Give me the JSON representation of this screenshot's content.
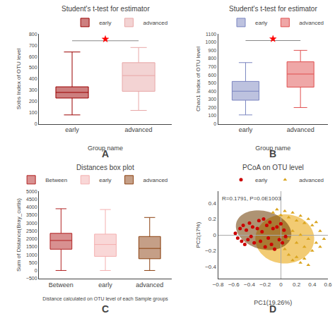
{
  "chart_data": [
    {
      "type": "box",
      "title": "Student's t-test for estimator",
      "xlabel": "Group name",
      "ylabel": "Sobs Index of OTU level",
      "categories": [
        "early",
        "advanced"
      ],
      "series": [
        {
          "name": "early",
          "color": "#9B0000",
          "q1": 230,
          "median": 280,
          "q3": 330,
          "whisker_low": 80,
          "whisker_high": 640
        },
        {
          "name": "advanced",
          "color": "#E8A8A8",
          "q1": 290,
          "median": 430,
          "q3": 545,
          "whisker_low": 120,
          "whisker_high": 680
        }
      ],
      "ylim": [
        0,
        800
      ],
      "yticks": [
        0,
        100,
        200,
        300,
        400,
        500,
        600,
        700,
        800
      ],
      "grid": false,
      "legend": "upper right",
      "significance": {
        "y": 740,
        "star_y": 754.8,
        "color": "red"
      },
      "annotations": [
        {
          "text": "A"
        }
      ]
    },
    {
      "type": "box",
      "title": "Student's t-test for estimator",
      "xlabel": "Group name",
      "ylabel": "Chao1 Index of OTU level",
      "categories": [
        "early",
        "advanced"
      ],
      "series": [
        {
          "name": "early",
          "color": "#7B85C0",
          "q1": 290,
          "median": 400,
          "q3": 520,
          "whisker_low": 110,
          "whisker_high": 750
        },
        {
          "name": "advanced",
          "color": "#E05050",
          "q1": 450,
          "median": 610,
          "q3": 760,
          "whisker_low": 200,
          "whisker_high": 900
        }
      ],
      "ylim": [
        0,
        1100
      ],
      "yticks": [
        0,
        100,
        200,
        300,
        400,
        500,
        600,
        700,
        800,
        900,
        1000,
        1100
      ],
      "grid": false,
      "legend": "upper right",
      "significance": {
        "y": 1020,
        "star_y": 1040.4,
        "color": "red"
      },
      "annotations": [
        {
          "text": "B"
        }
      ]
    },
    {
      "type": "box",
      "title": "Distances box plot",
      "xlabel": "Distance calculated on OTU level of each Sample groups",
      "ylabel": "Sum of Distance(Bray_curtis)",
      "categories": [
        "Between",
        "early",
        "advanced"
      ],
      "series": [
        {
          "name": "Between",
          "color": "#B22222",
          "q1": 1350,
          "median": 1900,
          "q3": 2350,
          "whisker_low": 10,
          "whisker_high": 3900
        },
        {
          "name": "early",
          "color": "#F4B0B0",
          "q1": 900,
          "median": 1650,
          "q3": 2300,
          "whisker_low": 10,
          "whisker_high": 3850
        },
        {
          "name": "advanced",
          "color": "#8B4010",
          "q1": 750,
          "median": 1400,
          "q3": 2150,
          "whisker_low": 10,
          "whisker_high": 3350
        }
      ],
      "ylim": [
        -500,
        5000
      ],
      "yticks": [
        -500,
        0,
        500,
        1000,
        1500,
        2000,
        2500,
        3000,
        3500,
        4000,
        4500,
        5000
      ],
      "grid": false,
      "legend": "upper right",
      "annotations": [
        {
          "text": "C"
        }
      ]
    },
    {
      "type": "scatter",
      "title": "PCoA on OTU level",
      "subtitle": "R=0.1791, P=0.0E1003",
      "xlabel": "PC1(19.26%)",
      "ylabel": "PC2(17%)",
      "xlim": [
        -0.8,
        0.6
      ],
      "ylim": [
        -0.55,
        0.55
      ],
      "xticks": [
        -0.8,
        -0.6,
        -0.4,
        -0.2,
        0,
        0.2,
        0.4,
        0.6
      ],
      "yticks": [
        -0.4,
        -0.2,
        0,
        0.2,
        0.4
      ],
      "grid": false,
      "legend": "upper right",
      "ellipses": [
        {
          "cx": 0.05,
          "cy": -0.05,
          "width": 0.75,
          "height": 0.62,
          "angle": 0,
          "color": "#E8A000"
        },
        {
          "cx": -0.22,
          "cy": 0.06,
          "width": 0.72,
          "height": 0.48,
          "angle": -15,
          "color": "#6B3A00"
        }
      ],
      "series": [
        {
          "name": "early",
          "color": "#CC0000",
          "marker": "circle",
          "points": [
            [
              -0.58,
              0.02
            ],
            [
              -0.55,
              -0.04
            ],
            [
              -0.52,
              0.08
            ],
            [
              -0.5,
              -0.08
            ],
            [
              -0.48,
              0.12
            ],
            [
              -0.46,
              -0.12
            ],
            [
              -0.44,
              0.06
            ],
            [
              -0.42,
              -0.06
            ],
            [
              -0.4,
              0.15
            ],
            [
              -0.38,
              -0.02
            ],
            [
              -0.36,
              0.1
            ],
            [
              -0.34,
              -0.1
            ],
            [
              -0.3,
              0.08
            ],
            [
              -0.28,
              0.18
            ],
            [
              -0.26,
              -0.08
            ],
            [
              -0.24,
              0.04
            ],
            [
              -0.22,
              0.2
            ],
            [
              -0.2,
              -0.15
            ],
            [
              -0.18,
              0.12
            ],
            [
              -0.16,
              -0.04
            ],
            [
              -0.14,
              0.16
            ],
            [
              -0.12,
              -0.12
            ],
            [
              -0.1,
              0.08
            ],
            [
              -0.08,
              -0.18
            ],
            [
              -0.05,
              0.1
            ],
            [
              -0.02,
              -0.06
            ],
            [
              0.0,
              0.14
            ],
            [
              0.02,
              -0.1
            ],
            [
              0.04,
              0.06
            ],
            [
              0.06,
              -0.02
            ]
          ]
        },
        {
          "name": "advanced",
          "color": "#DAA520",
          "marker": "triangle",
          "points": [
            [
              -0.1,
              0.28
            ],
            [
              -0.05,
              0.32
            ],
            [
              0.0,
              0.25
            ],
            [
              0.05,
              0.3
            ],
            [
              0.1,
              0.22
            ],
            [
              0.15,
              0.28
            ],
            [
              0.2,
              0.18
            ],
            [
              0.25,
              0.24
            ],
            [
              0.3,
              0.15
            ],
            [
              0.35,
              0.2
            ],
            [
              0.4,
              0.12
            ],
            [
              0.45,
              0.16
            ],
            [
              0.1,
              -0.05
            ],
            [
              0.15,
              0.05
            ],
            [
              0.2,
              -0.1
            ],
            [
              0.25,
              0.0
            ],
            [
              0.3,
              -0.15
            ],
            [
              0.35,
              -0.05
            ],
            [
              0.4,
              -0.2
            ],
            [
              0.45,
              -0.1
            ],
            [
              0.1,
              -0.25
            ],
            [
              0.15,
              -0.32
            ],
            [
              0.2,
              -0.28
            ],
            [
              0.25,
              -0.35
            ],
            [
              0.3,
              -0.3
            ],
            [
              0.35,
              -0.38
            ],
            [
              0.05,
              -0.18
            ],
            [
              0.5,
              -0.15
            ],
            [
              0.5,
              0.05
            ],
            [
              0.55,
              -0.05
            ]
          ]
        }
      ],
      "annotations": [
        {
          "text": "D"
        }
      ]
    }
  ]
}
